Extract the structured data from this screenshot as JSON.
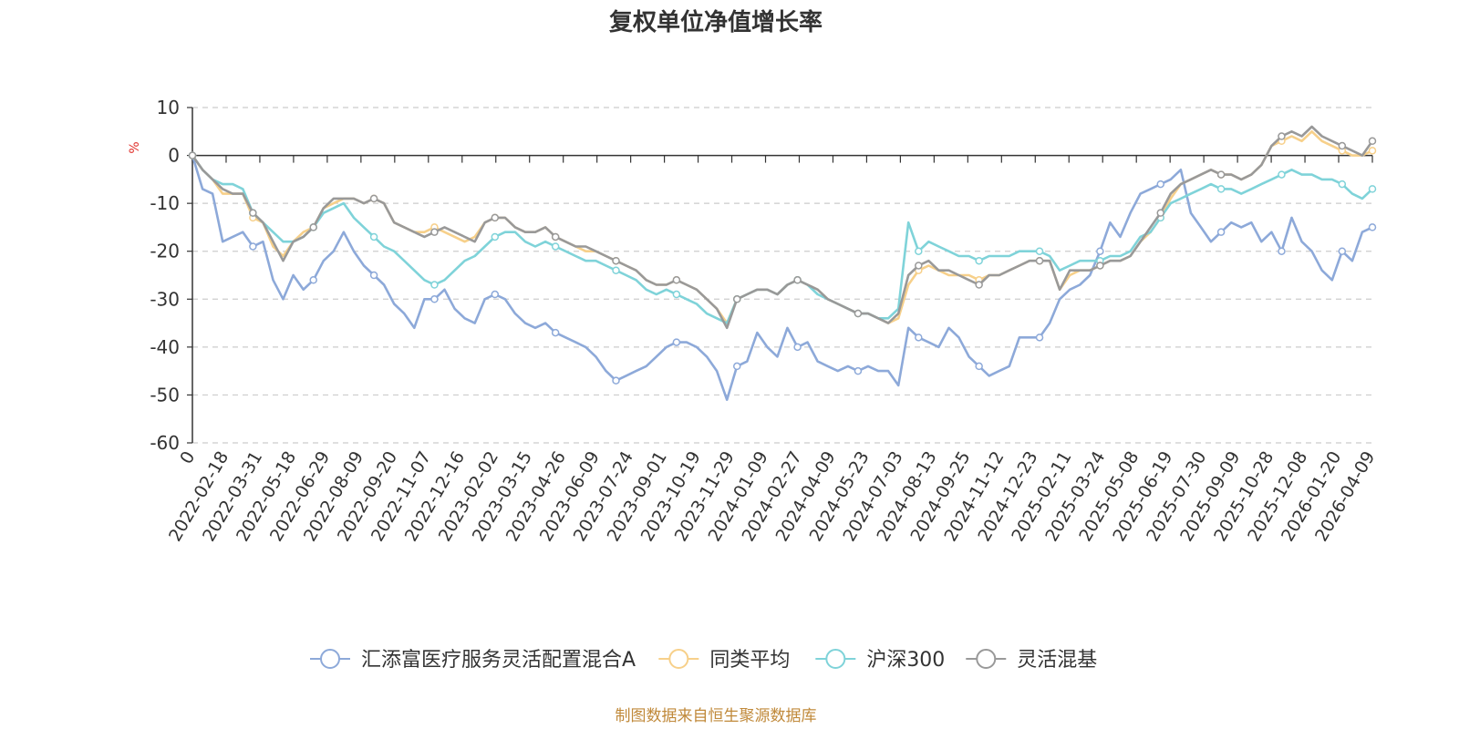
{
  "chart_data": {
    "type": "line",
    "title": "复权单位净值增长率",
    "ylabel": "%",
    "xlabel": "",
    "ylim": [
      -60,
      10
    ],
    "y_ticks": [
      "10",
      "0",
      "-10",
      "-20",
      "-30",
      "-40",
      "-50",
      "-60"
    ],
    "x_tick_labels": [
      "0",
      "2022-02-18",
      "2022-03-31",
      "2022-05-18",
      "2022-06-29",
      "2022-08-09",
      "2022-09-20",
      "2022-11-07",
      "2022-12-16",
      "2023-02-02",
      "2023-03-15",
      "2023-04-26",
      "2023-06-09",
      "2023-07-24",
      "2023-09-01",
      "2023-10-19",
      "2023-11-29",
      "2024-01-09",
      "2024-02-27",
      "2024-04-09",
      "2024-05-23",
      "2024-07-03",
      "2024-08-13",
      "2024-09-25",
      "2024-11-12",
      "2024-12-23",
      "2025-02-11",
      "2025-03-24",
      "2025-05-08",
      "2025-06-19",
      "2025-07-30",
      "2025-09-09",
      "2025-10-28",
      "2025-12-08",
      "2026-01-20",
      "2026-04-09"
    ],
    "grid": true,
    "legend_position": "bottom",
    "series": [
      {
        "name": "汇添富医疗服务灵活配置混合A",
        "color": "#8da9d9",
        "values": [
          0,
          -7,
          -8,
          -18,
          -17,
          -16,
          -19,
          -18,
          -26,
          -30,
          -25,
          -28,
          -26,
          -22,
          -20,
          -16,
          -20,
          -23,
          -25,
          -27,
          -31,
          -33,
          -36,
          -30,
          -30,
          -28,
          -32,
          -34,
          -35,
          -30,
          -29,
          -30,
          -33,
          -35,
          -36,
          -35,
          -37,
          -38,
          -39,
          -40,
          -42,
          -45,
          -47,
          -46,
          -45,
          -44,
          -42,
          -40,
          -39,
          -39,
          -40,
          -42,
          -45,
          -51,
          -44,
          -43,
          -37,
          -40,
          -42,
          -36,
          -40,
          -39,
          -43,
          -44,
          -45,
          -44,
          -45,
          -44,
          -45,
          -45,
          -48,
          -36,
          -38,
          -39,
          -40,
          -36,
          -38,
          -42,
          -44,
          -46,
          -45,
          -44,
          -38,
          -38,
          -38,
          -35,
          -30,
          -28,
          -27,
          -25,
          -20,
          -14,
          -17,
          -12,
          -8,
          -7,
          -6,
          -5,
          -3,
          -12,
          -15,
          -18,
          -16,
          -14,
          -15,
          -14,
          -18,
          -16,
          -20,
          -13,
          -18,
          -20,
          -24,
          -26,
          -20,
          -22,
          -16,
          -15
        ]
      },
      {
        "name": "同类平均",
        "color": "#f7d08a",
        "values": [
          0,
          -3,
          -5,
          -8,
          -8,
          -8,
          -13,
          -14,
          -19,
          -21,
          -18,
          -16,
          -15,
          -11,
          -10,
          -9,
          -9,
          -10,
          -9,
          -10,
          -14,
          -15,
          -16,
          -16,
          -15,
          -16,
          -17,
          -18,
          -17,
          -14,
          -13,
          -13,
          -15,
          -16,
          -16,
          -15,
          -17,
          -18,
          -19,
          -20,
          -20,
          -21,
          -22,
          -23,
          -24,
          -26,
          -27,
          -27,
          -26,
          -27,
          -28,
          -30,
          -32,
          -35,
          -30,
          -29,
          -28,
          -28,
          -29,
          -27,
          -26,
          -27,
          -28,
          -30,
          -31,
          -32,
          -33,
          -33,
          -34,
          -35,
          -34,
          -27,
          -24,
          -23,
          -24,
          -25,
          -25,
          -25,
          -26,
          -25,
          -25,
          -24,
          -23,
          -22,
          -22,
          -22,
          -28,
          -25,
          -24,
          -24,
          -23,
          -22,
          -22,
          -21,
          -18,
          -16,
          -13,
          -9,
          -6,
          -5,
          -4,
          -3,
          -4,
          -4,
          -5,
          -4,
          -2,
          2,
          3,
          4,
          3,
          5,
          3,
          2,
          1,
          0,
          0,
          1
        ]
      },
      {
        "name": "沪深300",
        "color": "#7fd3d9",
        "values": [
          0,
          -3,
          -5,
          -6,
          -6,
          -7,
          -12,
          -14,
          -16,
          -18,
          -18,
          -17,
          -15,
          -12,
          -11,
          -10,
          -13,
          -15,
          -17,
          -19,
          -20,
          -22,
          -24,
          -26,
          -27,
          -26,
          -24,
          -22,
          -21,
          -19,
          -17,
          -16,
          -16,
          -18,
          -19,
          -18,
          -19,
          -20,
          -21,
          -22,
          -22,
          -23,
          -24,
          -25,
          -26,
          -28,
          -29,
          -28,
          -29,
          -30,
          -31,
          -33,
          -34,
          -35,
          -30,
          -29,
          -28,
          -28,
          -29,
          -27,
          -26,
          -27,
          -29,
          -30,
          -31,
          -32,
          -33,
          -33,
          -34,
          -34,
          -32,
          -14,
          -20,
          -18,
          -19,
          -20,
          -21,
          -21,
          -22,
          -21,
          -21,
          -21,
          -20,
          -20,
          -20,
          -21,
          -24,
          -23,
          -22,
          -22,
          -22,
          -21,
          -21,
          -20,
          -17,
          -16,
          -13,
          -10,
          -9,
          -8,
          -7,
          -6,
          -7,
          -7,
          -8,
          -7,
          -6,
          -5,
          -4,
          -3,
          -4,
          -4,
          -5,
          -5,
          -6,
          -8,
          -9,
          -7
        ]
      },
      {
        "name": "灵活混基",
        "color": "#999999",
        "values": [
          0,
          -3,
          -5,
          -7,
          -8,
          -8,
          -12,
          -14,
          -18,
          -22,
          -18,
          -17,
          -15,
          -11,
          -9,
          -9,
          -9,
          -10,
          -9,
          -10,
          -14,
          -15,
          -16,
          -17,
          -16,
          -15,
          -16,
          -17,
          -18,
          -14,
          -13,
          -13,
          -15,
          -16,
          -16,
          -15,
          -17,
          -18,
          -19,
          -19,
          -20,
          -21,
          -22,
          -23,
          -24,
          -26,
          -27,
          -27,
          -26,
          -27,
          -28,
          -30,
          -32,
          -36,
          -30,
          -29,
          -28,
          -28,
          -29,
          -27,
          -26,
          -27,
          -28,
          -30,
          -31,
          -32,
          -33,
          -33,
          -34,
          -35,
          -33,
          -25,
          -23,
          -22,
          -24,
          -24,
          -25,
          -26,
          -27,
          -25,
          -25,
          -24,
          -23,
          -22,
          -22,
          -22,
          -28,
          -24,
          -24,
          -24,
          -23,
          -22,
          -22,
          -21,
          -18,
          -15,
          -12,
          -8,
          -6,
          -5,
          -4,
          -3,
          -4,
          -4,
          -5,
          -4,
          -2,
          2,
          4,
          5,
          4,
          6,
          4,
          3,
          2,
          1,
          0,
          3
        ]
      }
    ]
  },
  "footer": {
    "source": "制图数据来自恒生聚源数据库"
  }
}
